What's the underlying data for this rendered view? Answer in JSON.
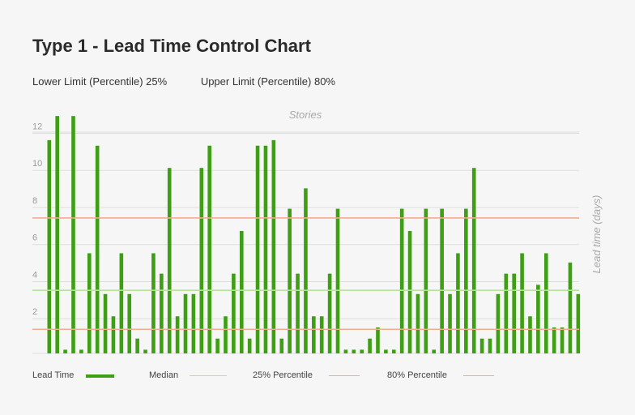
{
  "title": "Type 1 - Lead Time Control Chart",
  "limits": {
    "lower": "Lower Limit (Percentile) 25%",
    "upper": "Upper Limit (Percentile) 80%"
  },
  "legend": {
    "lead_time": "Lead Time",
    "median": "Median",
    "p25": "25% Percentile",
    "p80": "80% Percentile"
  },
  "colors": {
    "bar": "#3e9e14",
    "median": "#b4e39a",
    "percentile": "#f0ae8c",
    "grid": "#dddddd"
  },
  "chart_data": {
    "type": "bar",
    "xlabel": "Stories",
    "ylabel": "Lead time (days)",
    "yticks": [
      2,
      4,
      6,
      8,
      10,
      12
    ],
    "ylim": [
      0,
      12.5
    ],
    "grid": true,
    "values": [
      11.5,
      12.8,
      0.2,
      12.8,
      0.2,
      5.4,
      11.2,
      3.2,
      2.0,
      5.4,
      3.2,
      0.8,
      0.2,
      5.4,
      4.3,
      10.0,
      2.0,
      3.2,
      3.2,
      10.0,
      11.2,
      0.8,
      2.0,
      4.3,
      6.6,
      0.8,
      11.2,
      11.2,
      11.5,
      0.8,
      7.8,
      4.3,
      8.9,
      2.0,
      2.0,
      4.3,
      7.8,
      0.2,
      0.2,
      0.2,
      0.8,
      1.4,
      0.2,
      0.2,
      7.8,
      6.6,
      3.2,
      7.8,
      0.2,
      7.8,
      3.2,
      5.4,
      7.8,
      10.0,
      0.8,
      0.8,
      3.2,
      4.3,
      4.3,
      5.4,
      2.0,
      3.7,
      5.4,
      1.4,
      1.4,
      4.9,
      3.2
    ],
    "reference_lines": [
      {
        "name": "Median",
        "value": 3.4
      },
      {
        "name": "25% Percentile",
        "value": 1.3
      },
      {
        "name": "80% Percentile",
        "value": 7.3
      }
    ]
  }
}
